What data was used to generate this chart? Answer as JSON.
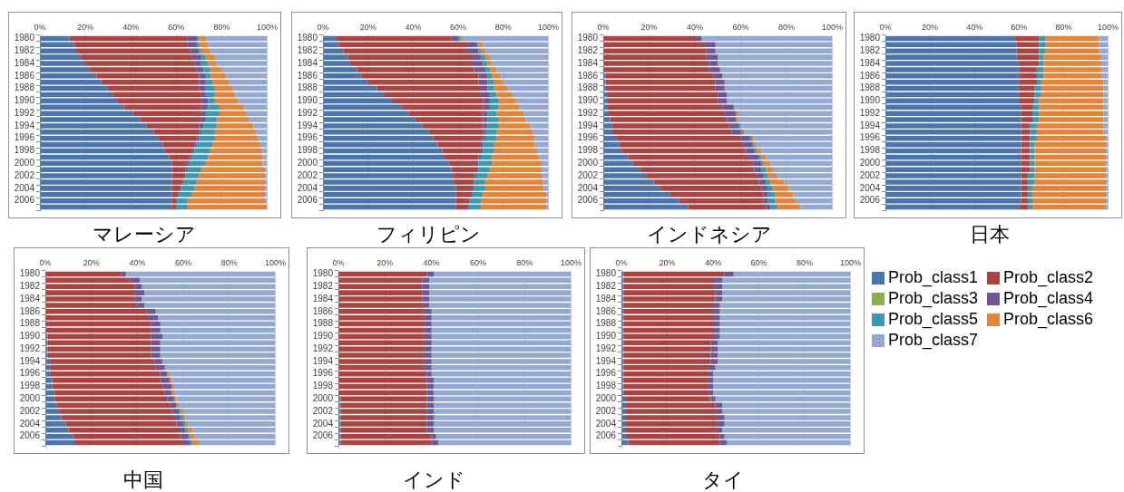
{
  "chart_data": [
    {
      "type": "bar",
      "orientation": "horizontal",
      "stacked": true,
      "title": "マレーシア",
      "grid": "x",
      "legend": "bottom right",
      "xlim": [
        0,
        100
      ],
      "xticks": [
        {
          "value": 0,
          "label": "0%"
        },
        {
          "value": 20,
          "label": "20%"
        },
        {
          "value": 40,
          "label": "40%"
        },
        {
          "value": 60,
          "label": "60%"
        },
        {
          "value": 80,
          "label": "80%"
        },
        {
          "value": 100,
          "label": "100%"
        }
      ],
      "categories": [
        "1980",
        null,
        "1982",
        null,
        "1984",
        null,
        "1986",
        null,
        "1988",
        null,
        "1990",
        null,
        "1992",
        null,
        "1994",
        null,
        "1996",
        null,
        "1998",
        null,
        "2000",
        null,
        "2002",
        null,
        "2004",
        null,
        "2006",
        null
      ],
      "series": [
        {
          "name": "Prob_class1",
          "color": "#4a74aa",
          "values": [
            13,
            15,
            16,
            18,
            20,
            22,
            25,
            27,
            30,
            32,
            34,
            37,
            41,
            44,
            47,
            50,
            52,
            54,
            55,
            57,
            58,
            58,
            58,
            58,
            58,
            58,
            58,
            58
          ]
        },
        {
          "name": "Prob_class2",
          "color": "#aa4442",
          "values": [
            52,
            50,
            50,
            49,
            48,
            47,
            45,
            43,
            40,
            39,
            37,
            34,
            30,
            27,
            23,
            20,
            17,
            14,
            12,
            9,
            7,
            6,
            6,
            5,
            4,
            3,
            2,
            2
          ]
        },
        {
          "name": "Prob_class3",
          "color": "#8db04c",
          "values": [
            0,
            0,
            0,
            0,
            0,
            0,
            0,
            0,
            0,
            0,
            0,
            0,
            0,
            0,
            0,
            0,
            0,
            0,
            0,
            0,
            0,
            0,
            0,
            0,
            0,
            0,
            0,
            0
          ]
        },
        {
          "name": "Prob_class4",
          "color": "#6f5692",
          "values": [
            4,
            4,
            4,
            4,
            3,
            3,
            3,
            3,
            3,
            2,
            3,
            3,
            2,
            2,
            2,
            1,
            1,
            1,
            1,
            1,
            1,
            1,
            0,
            0,
            0,
            0,
            0,
            0
          ]
        },
        {
          "name": "Prob_class5",
          "color": "#3b98b0",
          "values": [
            1,
            1,
            1,
            2,
            3,
            3,
            2,
            3,
            4,
            4,
            3,
            5,
            6,
            5,
            6,
            6,
            7,
            7,
            7,
            7,
            7,
            6,
            6,
            6,
            6,
            6,
            5,
            5
          ]
        },
        {
          "name": "Prob_class6",
          "color": "#e0853a",
          "values": [
            3,
            4,
            4,
            4,
            4,
            5,
            7,
            7,
            8,
            9,
            10,
            11,
            12,
            14,
            16,
            18,
            19,
            21,
            23,
            24,
            25,
            28,
            29,
            30,
            31,
            32,
            34,
            35
          ]
        },
        {
          "name": "Prob_class7",
          "color": "#93a9d2",
          "values": [
            27,
            26,
            25,
            23,
            22,
            20,
            18,
            17,
            15,
            14,
            13,
            10,
            9,
            8,
            6,
            5,
            4,
            3,
            2,
            2,
            2,
            1,
            1,
            1,
            1,
            1,
            1,
            0
          ]
        }
      ]
    },
    {
      "type": "bar",
      "orientation": "horizontal",
      "stacked": true,
      "title": "フィリピン",
      "grid": "x",
      "xlim": [
        0,
        100
      ],
      "xticks": [
        {
          "value": 0,
          "label": "0%"
        },
        {
          "value": 20,
          "label": "20%"
        },
        {
          "value": 40,
          "label": "40%"
        },
        {
          "value": 60,
          "label": "60%"
        },
        {
          "value": 80,
          "label": "80%"
        },
        {
          "value": 100,
          "label": "100%"
        }
      ],
      "categories": [
        "1980",
        null,
        "1982",
        null,
        "1984",
        null,
        "1986",
        null,
        "1988",
        null,
        "1990",
        null,
        "1992",
        null,
        "1994",
        null,
        "1996",
        null,
        "1998",
        null,
        "2000",
        null,
        "2002",
        null,
        "2004",
        null,
        "2006",
        null
      ],
      "series": [
        {
          "color": "#4a74aa",
          "values": [
            6,
            7,
            9,
            11,
            12,
            15,
            17,
            20,
            24,
            27,
            31,
            35,
            38,
            41,
            44,
            47,
            49,
            51,
            53,
            54,
            56,
            57,
            58,
            58,
            59,
            59,
            59,
            59
          ]
        },
        {
          "color": "#aa4442",
          "values": [
            51,
            57,
            55,
            55,
            54,
            52,
            52,
            49,
            46,
            43,
            40,
            36,
            33,
            30,
            27,
            24,
            22,
            19,
            17,
            15,
            12,
            11,
            9,
            9,
            7,
            7,
            6,
            5
          ]
        },
        {
          "color": "#8db04c",
          "values": [
            0,
            0,
            0,
            0,
            0,
            0,
            0,
            0,
            0,
            0,
            0,
            0,
            0,
            0,
            0,
            0,
            0,
            0,
            0,
            0,
            0,
            0,
            0,
            0,
            0,
            0,
            0,
            0
          ]
        },
        {
          "color": "#6f5692",
          "values": [
            3,
            4,
            5,
            4,
            5,
            5,
            4,
            4,
            3,
            4,
            3,
            3,
            2,
            2,
            2,
            1,
            1,
            1,
            1,
            1,
            1,
            1,
            1,
            0,
            1,
            0,
            0,
            1
          ]
        },
        {
          "color": "#3b98b0",
          "values": [
            1,
            1,
            1,
            2,
            2,
            2,
            2,
            3,
            3,
            3,
            4,
            4,
            4,
            5,
            5,
            5,
            5,
            5,
            5,
            5,
            6,
            5,
            5,
            5,
            5,
            5,
            5,
            5
          ]
        },
        {
          "color": "#e0853a",
          "values": [
            1,
            2,
            2,
            2,
            2,
            3,
            4,
            4,
            6,
            7,
            8,
            9,
            12,
            12,
            14,
            16,
            17,
            18,
            19,
            21,
            22,
            23,
            24,
            26,
            26,
            28,
            29,
            29
          ]
        },
        {
          "color": "#93a9d2",
          "values": [
            38,
            29,
            28,
            26,
            25,
            23,
            21,
            20,
            18,
            16,
            14,
            13,
            11,
            10,
            8,
            7,
            6,
            6,
            5,
            4,
            3,
            3,
            3,
            2,
            2,
            1,
            1,
            1
          ]
        }
      ]
    },
    {
      "type": "bar",
      "orientation": "horizontal",
      "stacked": true,
      "title": "インドネシア",
      "grid": "x",
      "xlim": [
        0,
        100
      ],
      "xticks": [
        {
          "value": 0,
          "label": "0%"
        },
        {
          "value": 20,
          "label": "20%"
        },
        {
          "value": 40,
          "label": "40%"
        },
        {
          "value": 60,
          "label": "60%"
        },
        {
          "value": 80,
          "label": "80%"
        },
        {
          "value": 100,
          "label": "100%"
        }
      ],
      "categories": [
        "1980",
        null,
        "1982",
        null,
        "1984",
        null,
        "1986",
        null,
        "1988",
        null,
        "1990",
        null,
        "1992",
        null,
        "1994",
        null,
        "1996",
        null,
        "1998",
        null,
        "2000",
        null,
        "2002",
        null,
        "2004",
        null,
        "2006",
        null
      ],
      "series": [
        {
          "color": "#4a74aa",
          "values": [
            0,
            0,
            0,
            0,
            0,
            0,
            1,
            1,
            1,
            2,
            2,
            2,
            2,
            3,
            4,
            4,
            6,
            7,
            8,
            11,
            13,
            16,
            19,
            22,
            25,
            29,
            33,
            37
          ]
        },
        {
          "color": "#aa4442",
          "values": [
            40,
            44,
            45,
            45,
            46,
            46,
            47,
            48,
            48,
            48,
            48,
            50,
            51,
            51,
            51,
            52,
            54,
            54,
            54,
            52,
            52,
            50,
            48,
            46,
            44,
            41,
            37,
            34
          ]
        },
        {
          "color": "#8db04c",
          "values": [
            0,
            0,
            0,
            0,
            0,
            0,
            0,
            0,
            0,
            0,
            0,
            0,
            0,
            0,
            0,
            0,
            0,
            0,
            0,
            0,
            0,
            0,
            0,
            0,
            0,
            0,
            0,
            0
          ]
        },
        {
          "color": "#6f5692",
          "values": [
            3,
            5,
            4,
            5,
            4,
            5,
            4,
            4,
            4,
            4,
            4,
            5,
            5,
            4,
            4,
            4,
            4,
            4,
            4,
            5,
            4,
            3,
            3,
            3,
            3,
            2,
            2,
            2
          ]
        },
        {
          "color": "#3b98b0",
          "values": [
            0,
            0,
            0,
            0,
            0,
            0,
            0,
            0,
            0,
            0,
            0,
            0,
            0,
            0,
            1,
            1,
            1,
            1,
            1,
            1,
            1,
            2,
            2,
            2,
            2,
            3,
            3,
            3
          ]
        },
        {
          "color": "#e0853a",
          "values": [
            0,
            0,
            0,
            0,
            0,
            0,
            0,
            0,
            0,
            0,
            0,
            0,
            1,
            1,
            0,
            1,
            1,
            1,
            2,
            2,
            3,
            3,
            4,
            6,
            7,
            8,
            9,
            10
          ]
        },
        {
          "color": "#93a9d2",
          "values": [
            57,
            51,
            51,
            50,
            50,
            49,
            48,
            47,
            47,
            46,
            46,
            43,
            41,
            41,
            40,
            38,
            34,
            33,
            31,
            29,
            27,
            26,
            24,
            21,
            19,
            17,
            16,
            14
          ]
        }
      ]
    },
    {
      "type": "bar",
      "orientation": "horizontal",
      "stacked": true,
      "title": "日本",
      "grid": "x",
      "xlim": [
        0,
        100
      ],
      "xticks": [
        {
          "value": 0,
          "label": "0%"
        },
        {
          "value": 20,
          "label": "20%"
        },
        {
          "value": 40,
          "label": "40%"
        },
        {
          "value": 60,
          "label": "60%"
        },
        {
          "value": 80,
          "label": "80%"
        },
        {
          "value": 100,
          "label": "100%"
        }
      ],
      "categories": [
        "1980",
        null,
        "1982",
        null,
        "1984",
        null,
        "1986",
        null,
        "1988",
        null,
        "1990",
        null,
        "1992",
        null,
        "1994",
        null,
        "1996",
        null,
        "1998",
        null,
        "2000",
        null,
        "2002",
        null,
        "2004",
        null,
        "2006",
        null
      ],
      "series": [
        {
          "color": "#4a74aa",
          "values": [
            58,
            59,
            59,
            59,
            60,
            60,
            60,
            60,
            60,
            60,
            60,
            61,
            61,
            61,
            61,
            61,
            61,
            61,
            61,
            61,
            61,
            61,
            61,
            61,
            61,
            61,
            61,
            60
          ]
        },
        {
          "color": "#aa4442",
          "values": [
            11,
            10,
            10,
            10,
            9,
            8,
            8,
            8,
            7,
            7,
            7,
            5,
            5,
            5,
            4,
            4,
            4,
            4,
            4,
            4,
            4,
            4,
            3,
            3,
            3,
            3,
            3,
            4
          ]
        },
        {
          "color": "#8db04c",
          "values": [
            0,
            0,
            0,
            0,
            0,
            0,
            0,
            0,
            0,
            0,
            0,
            0,
            0,
            0,
            0,
            0,
            0,
            0,
            0,
            0,
            0,
            0,
            0,
            0,
            0,
            0,
            0,
            0
          ]
        },
        {
          "color": "#6f5692",
          "values": [
            0,
            0,
            0,
            0,
            0,
            0,
            0,
            0,
            0,
            0,
            0,
            0,
            0,
            0,
            0,
            0,
            0,
            0,
            0,
            0,
            0,
            0,
            0,
            0,
            0,
            0,
            0,
            0
          ]
        },
        {
          "color": "#3b98b0",
          "values": [
            3,
            3,
            3,
            2,
            2,
            3,
            3,
            2,
            3,
            3,
            2,
            3,
            3,
            3,
            3,
            3,
            3,
            2,
            2,
            2,
            2,
            2,
            3,
            3,
            2,
            2,
            2,
            2
          ]
        },
        {
          "color": "#e0853a",
          "values": [
            24,
            24,
            24,
            26,
            26,
            26,
            26,
            28,
            28,
            28,
            29,
            29,
            29,
            29,
            30,
            30,
            31,
            32,
            32,
            32,
            32,
            32,
            32,
            32,
            33,
            33,
            33,
            33
          ]
        },
        {
          "color": "#93a9d2",
          "values": [
            4,
            4,
            4,
            3,
            3,
            3,
            3,
            2,
            2,
            2,
            2,
            2,
            2,
            2,
            2,
            2,
            1,
            1,
            1,
            1,
            1,
            1,
            1,
            1,
            1,
            1,
            1,
            1
          ]
        }
      ]
    },
    {
      "type": "bar",
      "orientation": "horizontal",
      "stacked": true,
      "title": "中国",
      "grid": "x",
      "xlim": [
        0,
        100
      ],
      "xticks": [
        {
          "value": 0,
          "label": "0%"
        },
        {
          "value": 20,
          "label": "20%"
        },
        {
          "value": 40,
          "label": "40%"
        },
        {
          "value": 60,
          "label": "60%"
        },
        {
          "value": 80,
          "label": "80%"
        },
        {
          "value": 100,
          "label": "100%"
        }
      ],
      "categories": [
        "1980",
        null,
        "1982",
        null,
        "1984",
        null,
        "1986",
        null,
        "1988",
        null,
        "1990",
        null,
        "1992",
        null,
        "1994",
        null,
        "1996",
        null,
        "1998",
        null,
        "2000",
        null,
        "2002",
        null,
        "2004",
        null,
        "2006",
        null
      ],
      "series": [
        {
          "color": "#4a74aa",
          "values": [
            0,
            0,
            0,
            0,
            0,
            0,
            0,
            0,
            0,
            0,
            1,
            1,
            1,
            1,
            2,
            2,
            2,
            3,
            3,
            4,
            4,
            5,
            6,
            7,
            9,
            10,
            12,
            13
          ]
        },
        {
          "color": "#aa4442",
          "values": [
            33,
            37,
            39,
            39,
            39,
            40,
            44,
            45,
            46,
            46,
            45,
            45,
            45,
            45,
            45,
            46,
            48,
            47,
            48,
            48,
            49,
            49,
            49,
            49,
            48,
            48,
            47,
            47
          ]
        },
        {
          "color": "#8db04c",
          "values": [
            0,
            0,
            0,
            0,
            0,
            0,
            0,
            0,
            0,
            0,
            0,
            0,
            0,
            0,
            0,
            0,
            0,
            0,
            0,
            0,
            0,
            0,
            0,
            0,
            0,
            0,
            0,
            0
          ]
        },
        {
          "color": "#6f5692",
          "values": [
            2,
            4,
            3,
            4,
            3,
            3,
            4,
            4,
            4,
            4,
            5,
            4,
            4,
            4,
            4,
            4,
            3,
            4,
            4,
            3,
            3,
            3,
            3,
            3,
            3,
            3,
            3,
            3
          ]
        },
        {
          "color": "#3b98b0",
          "values": [
            0,
            0,
            0,
            0,
            0,
            0,
            0,
            0,
            0,
            0,
            0,
            0,
            0,
            0,
            0,
            0,
            0,
            0,
            0,
            0,
            0,
            0,
            1,
            1,
            1,
            1,
            1,
            1
          ]
        },
        {
          "color": "#e0853a",
          "values": [
            0,
            0,
            0,
            0,
            0,
            0,
            0,
            0,
            0,
            0,
            0,
            0,
            0,
            0,
            0,
            0,
            1,
            1,
            1,
            1,
            1,
            1,
            1,
            1,
            1,
            2,
            2,
            3
          ]
        },
        {
          "color": "#93a9d2",
          "values": [
            65,
            59,
            58,
            57,
            58,
            57,
            52,
            51,
            50,
            50,
            49,
            50,
            50,
            50,
            49,
            48,
            46,
            45,
            44,
            44,
            43,
            42,
            40,
            39,
            38,
            36,
            35,
            33
          ]
        }
      ]
    },
    {
      "type": "bar",
      "orientation": "horizontal",
      "stacked": true,
      "title": "インド",
      "grid": "x",
      "xlim": [
        0,
        100
      ],
      "xticks": [
        {
          "value": 0,
          "label": "0%"
        },
        {
          "value": 20,
          "label": "20%"
        },
        {
          "value": 40,
          "label": "40%"
        },
        {
          "value": 60,
          "label": "60%"
        },
        {
          "value": 80,
          "label": "80%"
        },
        {
          "value": 100,
          "label": "100%"
        }
      ],
      "categories": [
        "1980",
        null,
        "1982",
        null,
        "1984",
        null,
        "1986",
        null,
        "1988",
        null,
        "1990",
        null,
        "1992",
        null,
        "1994",
        null,
        "1996",
        null,
        "1998",
        null,
        "2000",
        null,
        "2002",
        null,
        "2004",
        null,
        "2006",
        null
      ],
      "series": [
        {
          "color": "#4a74aa",
          "values": [
            0,
            0,
            0,
            0,
            0,
            0,
            0,
            0,
            0,
            0,
            0,
            0,
            0,
            0,
            0,
            0,
            0,
            0,
            0,
            0,
            1,
            1,
            1,
            1,
            1,
            1,
            1,
            1
          ]
        },
        {
          "color": "#aa4442",
          "values": [
            38,
            36,
            36,
            36,
            36,
            37,
            37,
            37,
            37,
            37,
            37,
            37,
            37,
            37,
            37,
            37,
            38,
            38,
            38,
            38,
            37,
            37,
            37,
            37,
            37,
            37,
            39,
            39
          ]
        },
        {
          "color": "#8db04c",
          "values": [
            0,
            0,
            0,
            0,
            0,
            0,
            0,
            0,
            0,
            0,
            0,
            0,
            0,
            0,
            0,
            0,
            0,
            0,
            0,
            0,
            0,
            0,
            0,
            0,
            0,
            0,
            0,
            0
          ]
        },
        {
          "color": "#6f5692",
          "values": [
            3,
            3,
            3,
            3,
            3,
            2,
            3,
            3,
            3,
            3,
            3,
            3,
            3,
            3,
            3,
            3,
            2,
            3,
            3,
            3,
            3,
            3,
            3,
            3,
            3,
            3,
            2,
            3
          ]
        },
        {
          "color": "#3b98b0",
          "values": [
            0,
            0,
            0,
            0,
            0,
            0,
            0,
            0,
            0,
            0,
            0,
            0,
            0,
            0,
            0,
            0,
            0,
            0,
            0,
            0,
            0,
            0,
            0,
            0,
            0,
            0,
            0,
            0
          ]
        },
        {
          "color": "#e0853a",
          "values": [
            0,
            0,
            0,
            0,
            0,
            0,
            0,
            0,
            0,
            0,
            0,
            0,
            0,
            0,
            0,
            0,
            0,
            0,
            0,
            0,
            0,
            0,
            0,
            0,
            0,
            0,
            0,
            0
          ]
        },
        {
          "color": "#93a9d2",
          "values": [
            59,
            61,
            61,
            61,
            61,
            61,
            60,
            60,
            60,
            60,
            60,
            60,
            60,
            60,
            60,
            60,
            60,
            59,
            59,
            59,
            59,
            59,
            59,
            59,
            59,
            59,
            58,
            57
          ]
        }
      ]
    },
    {
      "type": "bar",
      "orientation": "horizontal",
      "stacked": true,
      "title": "タイ",
      "grid": "x",
      "xlim": [
        0,
        100
      ],
      "xticks": [
        {
          "value": 0,
          "label": "0%"
        },
        {
          "value": 20,
          "label": "20%"
        },
        {
          "value": 40,
          "label": "40%"
        },
        {
          "value": 60,
          "label": "60%"
        },
        {
          "value": 80,
          "label": "80%"
        },
        {
          "value": 100,
          "label": "100%"
        }
      ],
      "categories": [
        "1980",
        null,
        "1982",
        null,
        "1984",
        null,
        "1986",
        null,
        "1988",
        null,
        "1990",
        null,
        "1992",
        null,
        "1994",
        null,
        "1996",
        null,
        "1998",
        null,
        "2000",
        null,
        "2002",
        null,
        "2004",
        null,
        "2006",
        null
      ],
      "series": [
        {
          "color": "#4a74aa",
          "values": [
            1,
            1,
            1,
            1,
            1,
            1,
            1,
            1,
            1,
            1,
            1,
            1,
            1,
            1,
            1,
            1,
            1,
            1,
            1,
            1,
            2,
            2,
            2,
            2,
            2,
            2,
            2,
            3
          ]
        },
        {
          "color": "#aa4442",
          "values": [
            44,
            39,
            39,
            40,
            40,
            39,
            39,
            39,
            39,
            39,
            39,
            38,
            38,
            38,
            38,
            37,
            37,
            37,
            37,
            37,
            37,
            39,
            40,
            40,
            40,
            40,
            41,
            40
          ]
        },
        {
          "color": "#8db04c",
          "values": [
            0,
            0,
            0,
            0,
            0,
            0,
            0,
            0,
            0,
            0,
            0,
            0,
            0,
            0,
            0,
            0,
            0,
            0,
            0,
            0,
            0,
            0,
            0,
            0,
            0,
            0,
            0,
            0
          ]
        },
        {
          "color": "#6f5692",
          "values": [
            4,
            4,
            4,
            3,
            3,
            3,
            3,
            3,
            3,
            3,
            3,
            3,
            3,
            3,
            3,
            3,
            2,
            2,
            2,
            2,
            2,
            3,
            2,
            3,
            3,
            2,
            2,
            3
          ]
        },
        {
          "color": "#3b98b0",
          "values": [
            0,
            0,
            0,
            0,
            0,
            0,
            0,
            0,
            0,
            0,
            0,
            0,
            0,
            0,
            0,
            0,
            0,
            0,
            0,
            0,
            0,
            0,
            0,
            0,
            0,
            0,
            0,
            0
          ]
        },
        {
          "color": "#e0853a",
          "values": [
            0,
            0,
            0,
            0,
            0,
            0,
            0,
            0,
            0,
            0,
            0,
            0,
            0,
            0,
            0,
            0,
            0,
            0,
            0,
            0,
            0,
            0,
            0,
            0,
            0,
            0,
            0,
            0
          ]
        },
        {
          "color": "#93a9d2",
          "values": [
            51,
            56,
            56,
            56,
            56,
            57,
            57,
            57,
            57,
            57,
            57,
            58,
            58,
            58,
            58,
            59,
            60,
            60,
            60,
            60,
            59,
            56,
            56,
            55,
            55,
            56,
            55,
            54
          ]
        }
      ]
    }
  ]
}
